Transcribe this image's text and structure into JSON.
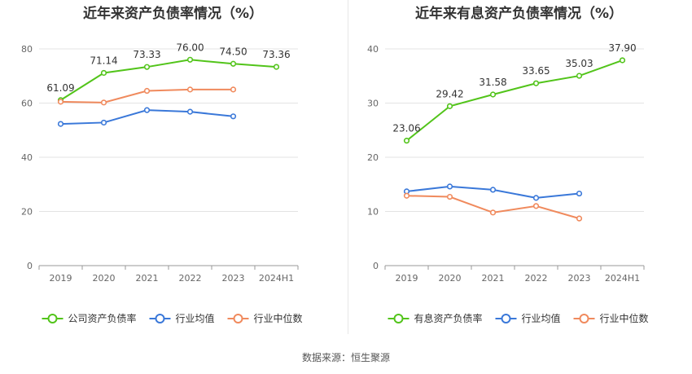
{
  "source": "数据来源：恒生聚源",
  "chart_data": [
    {
      "type": "line",
      "title": "近年来资产负债率情况（%）",
      "categories": [
        "2019",
        "2020",
        "2021",
        "2022",
        "2023",
        "2024H1"
      ],
      "ylim": [
        0,
        80
      ],
      "yticks": [
        0,
        20,
        40,
        60,
        80
      ],
      "grid": true,
      "legend": "bottom",
      "series": [
        {
          "name": "公司资产负债率",
          "color": "#52c41a",
          "labels": true,
          "values": [
            61.09,
            71.14,
            73.33,
            76.0,
            74.5,
            73.36
          ],
          "label_text": [
            "61.09",
            "71.14",
            "73.33",
            "76.00",
            "74.50",
            "73.36"
          ]
        },
        {
          "name": "行业均值",
          "color": "#3a78d9",
          "labels": false,
          "values": [
            52.3,
            52.8,
            57.4,
            56.8,
            55.1,
            null
          ]
        },
        {
          "name": "行业中位数",
          "color": "#f08a5d",
          "labels": false,
          "values": [
            60.5,
            60.2,
            64.5,
            65.0,
            65.0,
            null
          ]
        }
      ]
    },
    {
      "type": "line",
      "title": "近年来有息资产负债率情况（%）",
      "categories": [
        "2019",
        "2020",
        "2021",
        "2022",
        "2023",
        "2024H1"
      ],
      "ylim": [
        0,
        40
      ],
      "yticks": [
        0,
        10,
        20,
        30,
        40
      ],
      "grid": true,
      "legend": "bottom",
      "series": [
        {
          "name": "有息资产负债率",
          "color": "#52c41a",
          "labels": true,
          "values": [
            23.06,
            29.42,
            31.58,
            33.65,
            35.03,
            37.9
          ],
          "label_text": [
            "23.06",
            "29.42",
            "31.58",
            "33.65",
            "35.03",
            "37.90"
          ]
        },
        {
          "name": "行业均值",
          "color": "#3a78d9",
          "labels": false,
          "values": [
            13.7,
            14.6,
            14.0,
            12.5,
            13.3,
            null
          ]
        },
        {
          "name": "行业中位数",
          "color": "#f08a5d",
          "labels": false,
          "values": [
            12.9,
            12.7,
            9.8,
            11.0,
            8.7,
            null
          ]
        }
      ]
    }
  ]
}
